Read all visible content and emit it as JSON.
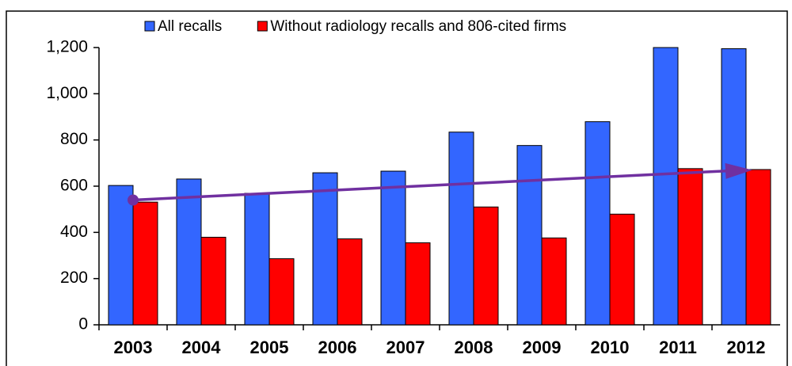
{
  "chart_data": {
    "type": "bar",
    "categories": [
      "2003",
      "2004",
      "2005",
      "2006",
      "2007",
      "2008",
      "2009",
      "2010",
      "2011",
      "2012"
    ],
    "series": [
      {
        "name": "All recalls",
        "color": "#3366ff",
        "values": [
          603,
          631,
          569,
          658,
          665,
          834,
          776,
          879,
          1200,
          1195
        ]
      },
      {
        "name": "Without radiology recalls and 806-cited firms",
        "color": "#ff0000",
        "values": [
          531,
          379,
          286,
          372,
          355,
          510,
          376,
          479,
          676,
          672
        ]
      }
    ],
    "trend": {
      "color": "#7030a0",
      "values": [
        540,
        670
      ]
    },
    "ylim": [
      0,
      1200
    ],
    "yticks": [
      0,
      200,
      400,
      600,
      800,
      {
        "value": 1000,
        "label": "1,000"
      },
      {
        "value": 1200,
        "label": "1,200"
      }
    ]
  }
}
